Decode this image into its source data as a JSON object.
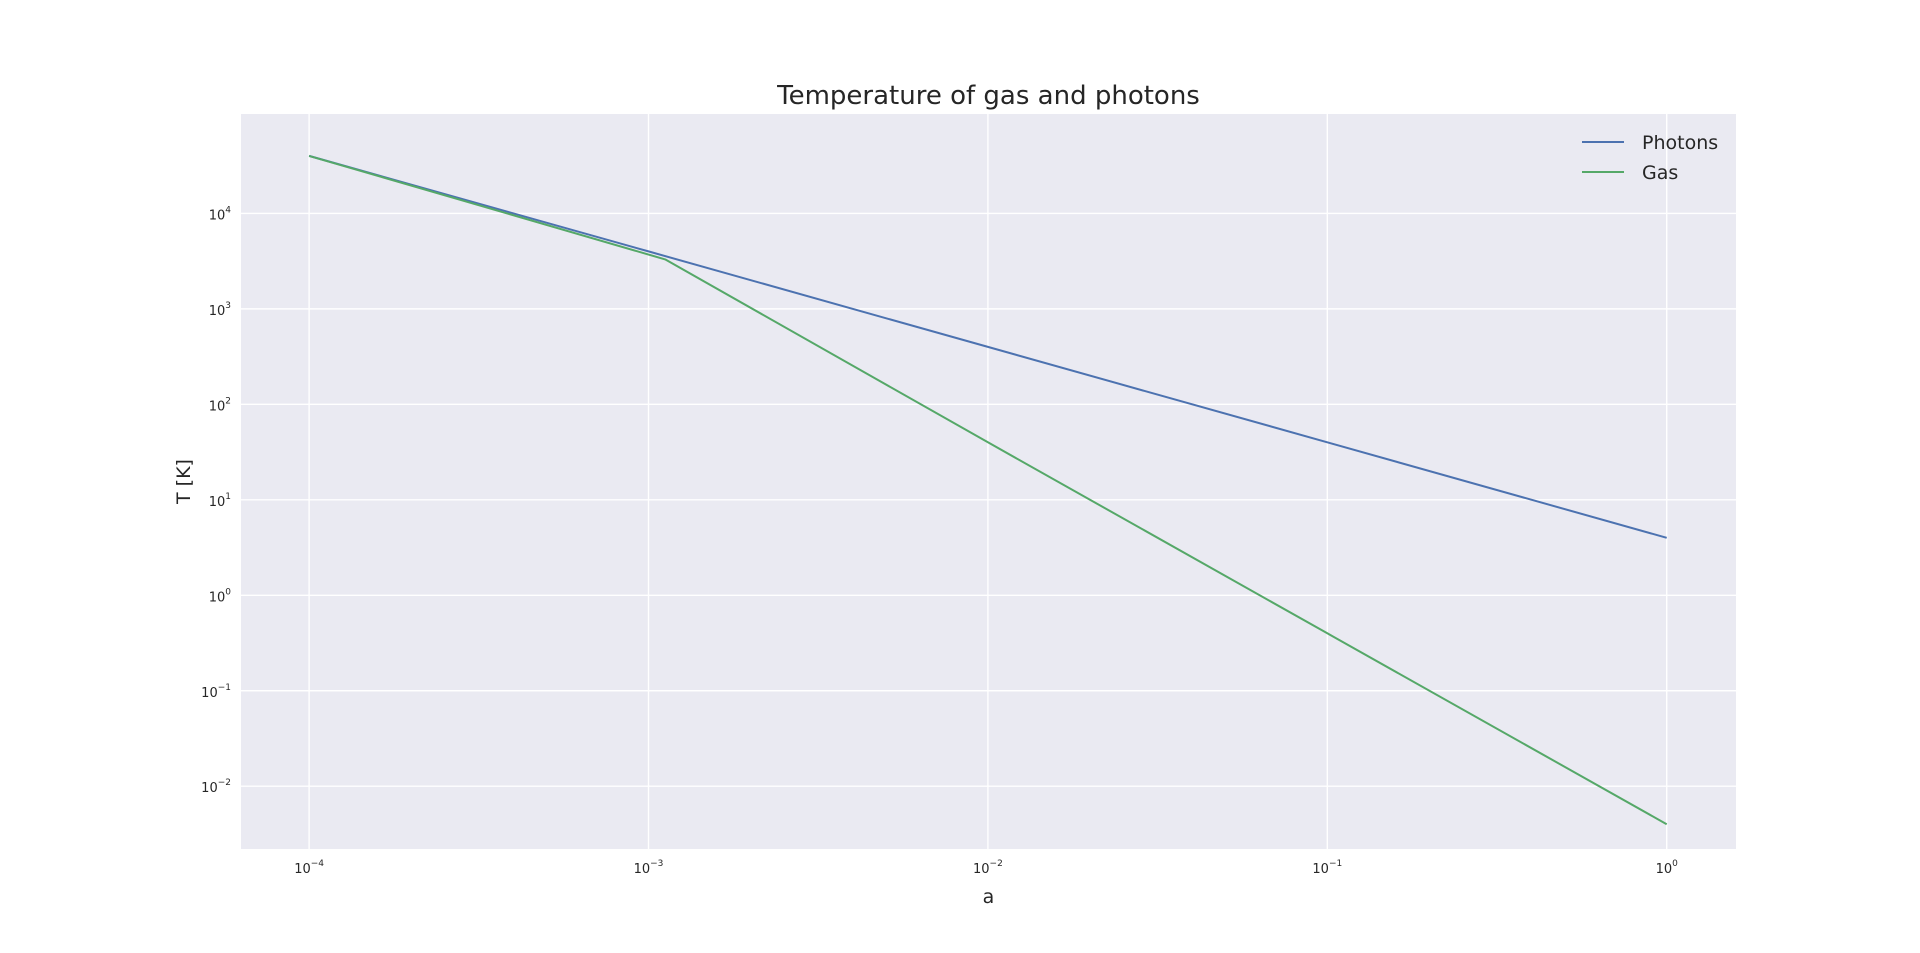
{
  "chart_data": {
    "type": "line",
    "title": "Temperature of gas and photons",
    "xlabel": "a",
    "ylabel": "T [K]",
    "x_scale": "log",
    "y_scale": "log",
    "xlim": [
      6.3e-05,
      1.6
    ],
    "ylim": [
      0.0022,
      110000
    ],
    "grid": true,
    "legend_position": "top-right",
    "x_ticks": [
      {
        "value": 0.0001,
        "base": "10",
        "exp": "−4"
      },
      {
        "value": 0.001,
        "base": "10",
        "exp": "−3"
      },
      {
        "value": 0.01,
        "base": "10",
        "exp": "−2"
      },
      {
        "value": 0.1,
        "base": "10",
        "exp": "−1"
      },
      {
        "value": 1,
        "base": "10",
        "exp": "0"
      }
    ],
    "y_ticks": [
      {
        "value": 0.01,
        "base": "10",
        "exp": "−2"
      },
      {
        "value": 0.1,
        "base": "10",
        "exp": "−1"
      },
      {
        "value": 1,
        "base": "10",
        "exp": "0"
      },
      {
        "value": 10,
        "base": "10",
        "exp": "1"
      },
      {
        "value": 100,
        "base": "10",
        "exp": "2"
      },
      {
        "value": 1000,
        "base": "10",
        "exp": "3"
      },
      {
        "value": 10000,
        "base": "10",
        "exp": "4"
      }
    ],
    "series": [
      {
        "name": "Photons",
        "color": "#4c72b0",
        "x": [
          0.0001,
          0.001,
          0.01,
          0.1,
          1
        ],
        "y": [
          40000,
          4000,
          400,
          40,
          4
        ]
      },
      {
        "name": "Gas",
        "color": "#55a868",
        "x": [
          0.0001,
          0.00112,
          0.01,
          0.1,
          1
        ],
        "y": [
          40000,
          3300,
          40,
          0.4,
          0.004
        ]
      }
    ]
  }
}
